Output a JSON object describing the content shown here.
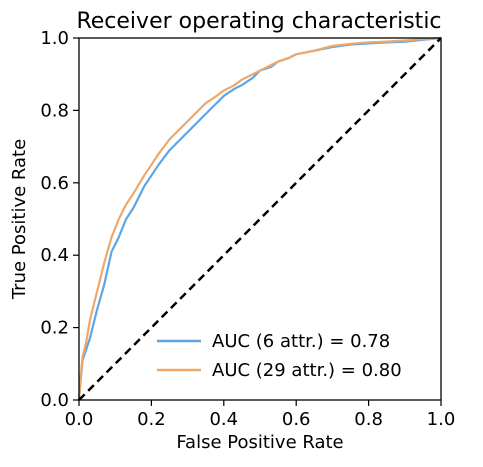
{
  "chart_data": {
    "type": "line",
    "title": "Receiver operating characteristic",
    "xlabel": "False Positive Rate",
    "ylabel": "True Positive Rate",
    "xlim": [
      0.0,
      1.0
    ],
    "ylim": [
      0.0,
      1.0
    ],
    "xticks": [
      "0.0",
      "0.2",
      "0.4",
      "0.6",
      "0.8",
      "1.0"
    ],
    "yticks": [
      "0.0",
      "0.2",
      "0.4",
      "0.6",
      "0.8",
      "1.0"
    ],
    "grid": false,
    "legend_position": "lower-right",
    "series": [
      {
        "name": "AUC (6 attr.) = 0.78",
        "color": "#5ea5e6",
        "x": [
          0.0,
          0.005,
          0.01,
          0.02,
          0.03,
          0.05,
          0.07,
          0.09,
          0.11,
          0.13,
          0.15,
          0.18,
          0.2,
          0.22,
          0.25,
          0.28,
          0.3,
          0.33,
          0.35,
          0.37,
          0.4,
          0.43,
          0.45,
          0.48,
          0.5,
          0.53,
          0.55,
          0.58,
          0.6,
          0.65,
          0.7,
          0.75,
          0.8,
          0.85,
          0.9,
          0.95,
          1.0
        ],
        "y": [
          0.0,
          0.06,
          0.11,
          0.14,
          0.17,
          0.25,
          0.32,
          0.41,
          0.45,
          0.5,
          0.53,
          0.59,
          0.62,
          0.65,
          0.69,
          0.72,
          0.74,
          0.77,
          0.79,
          0.81,
          0.84,
          0.86,
          0.87,
          0.89,
          0.91,
          0.92,
          0.935,
          0.945,
          0.955,
          0.965,
          0.975,
          0.982,
          0.985,
          0.988,
          0.99,
          0.995,
          1.0
        ]
      },
      {
        "name": "AUC (29 attr.) = 0.80",
        "color": "#eda86a",
        "x": [
          0.0,
          0.005,
          0.01,
          0.02,
          0.03,
          0.05,
          0.07,
          0.09,
          0.11,
          0.13,
          0.15,
          0.18,
          0.2,
          0.22,
          0.25,
          0.28,
          0.3,
          0.33,
          0.35,
          0.38,
          0.4,
          0.43,
          0.45,
          0.48,
          0.5,
          0.53,
          0.55,
          0.58,
          0.6,
          0.65,
          0.7,
          0.75,
          0.8,
          0.85,
          0.9,
          0.95,
          1.0
        ],
        "y": [
          0.0,
          0.07,
          0.12,
          0.16,
          0.22,
          0.3,
          0.38,
          0.45,
          0.5,
          0.54,
          0.57,
          0.62,
          0.65,
          0.68,
          0.72,
          0.75,
          0.77,
          0.8,
          0.82,
          0.84,
          0.855,
          0.87,
          0.885,
          0.9,
          0.91,
          0.925,
          0.935,
          0.945,
          0.955,
          0.965,
          0.978,
          0.984,
          0.988,
          0.99,
          0.993,
          0.997,
          1.0
        ]
      },
      {
        "color": "#000000",
        "dashed": true,
        "x": [
          0.0,
          1.0
        ],
        "y": [
          0.0,
          1.0
        ]
      }
    ]
  }
}
